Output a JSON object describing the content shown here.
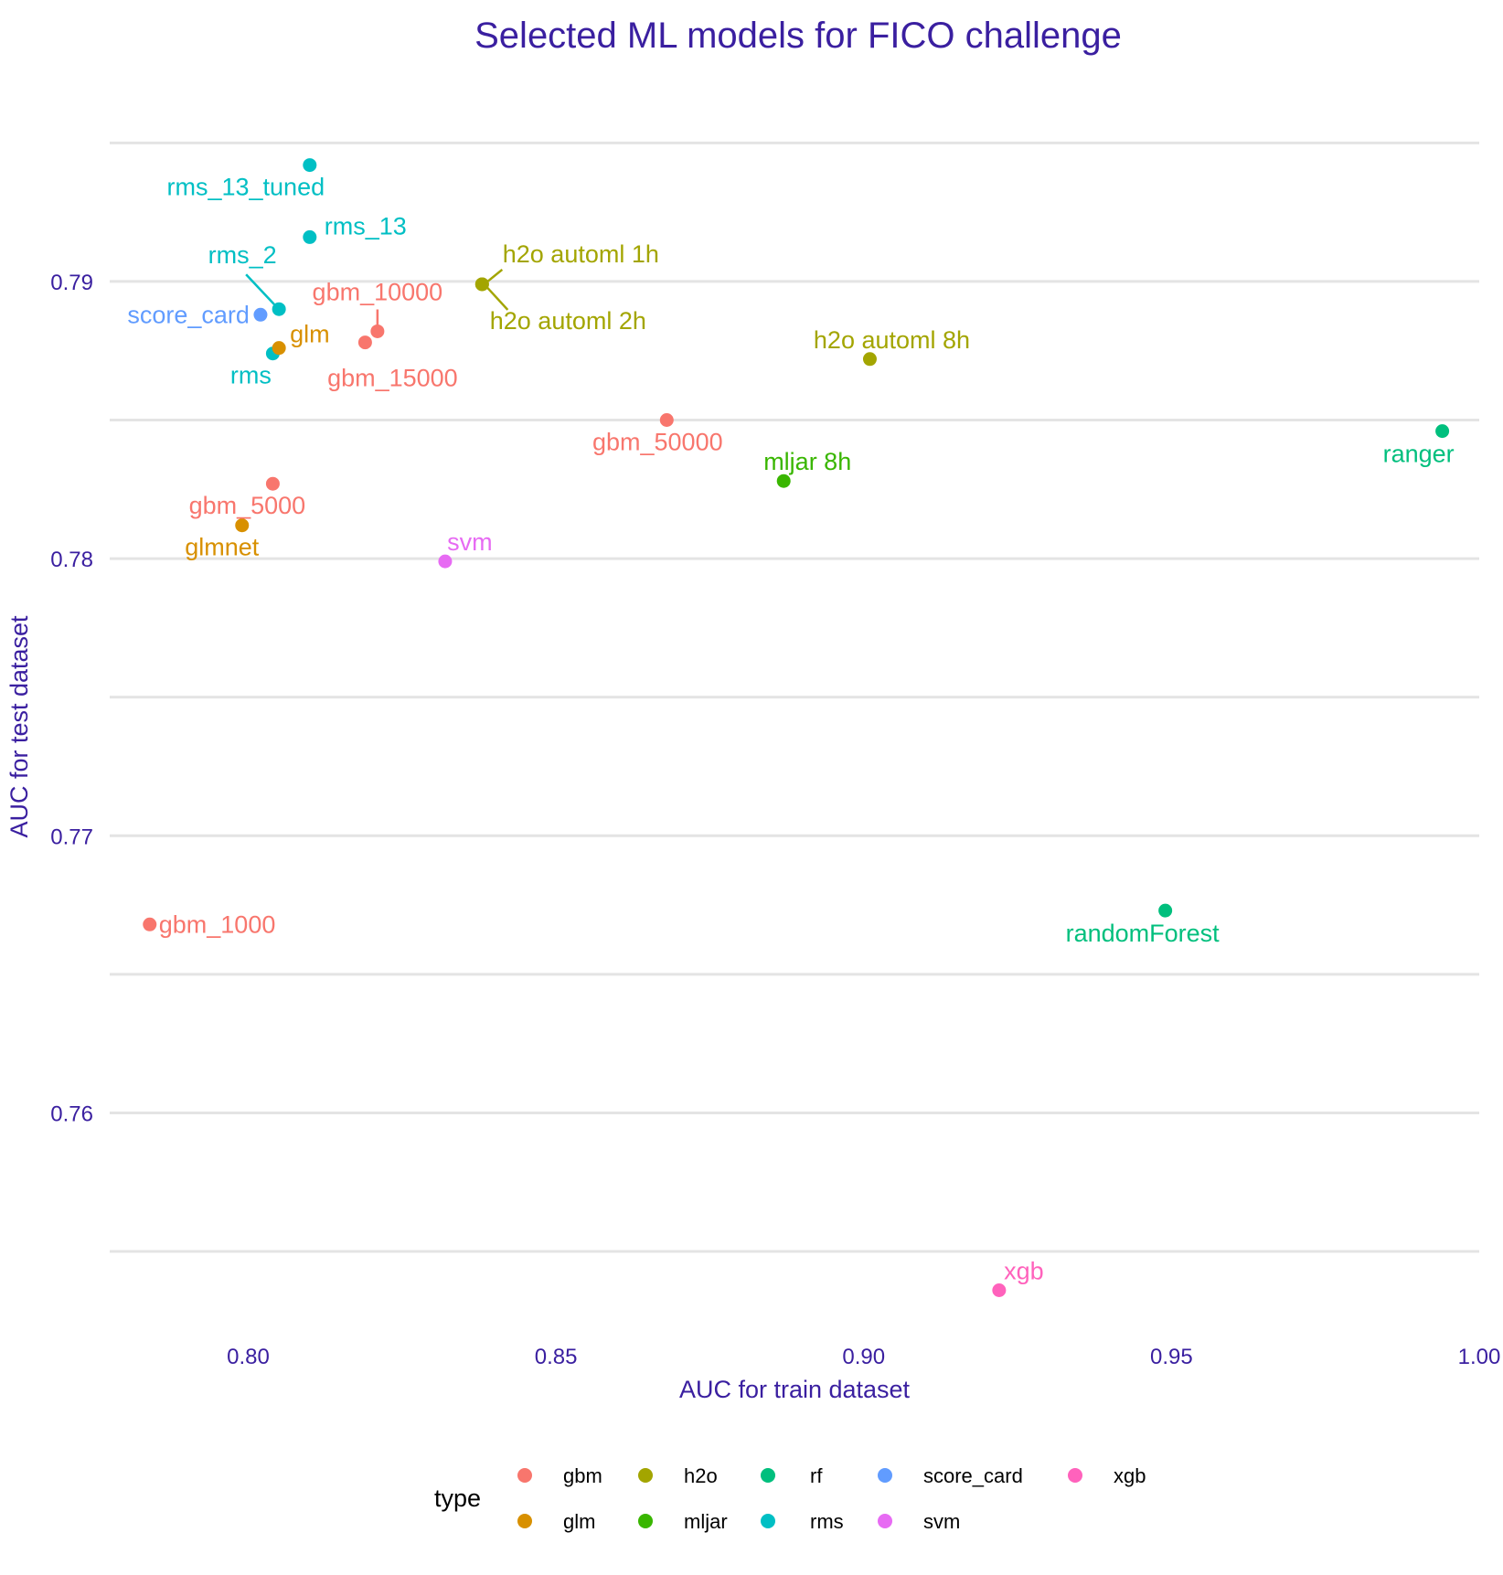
{
  "chart_data": {
    "type": "scatter",
    "title": "Selected ML models for FICO challenge",
    "xlabel": "AUC for train dataset",
    "ylabel": "AUC for test dataset",
    "xlim": [
      0.7775,
      1.0
    ],
    "ylim": [
      0.752,
      0.796
    ],
    "x_ticks": [
      0.8,
      0.85,
      0.9,
      0.95,
      1.0
    ],
    "x_tick_labels": [
      "0.80",
      "0.85",
      "0.90",
      "0.95",
      "1.00"
    ],
    "y_ticks": [
      0.76,
      0.77,
      0.78,
      0.79
    ],
    "y_tick_labels": [
      "0.76",
      "0.77",
      "0.78",
      "0.79"
    ],
    "y_minor_ticks": [
      0.755,
      0.765,
      0.775,
      0.785,
      0.795
    ],
    "grid": true,
    "legend_position": "bottom",
    "legend_title": "type",
    "colors": {
      "title": "#3a1fa0",
      "axis_text": "#3a1fa0",
      "grid": "#e4e4e4"
    },
    "legend": [
      {
        "label": "gbm",
        "color": "#F8766D"
      },
      {
        "label": "glm",
        "color": "#D89000"
      },
      {
        "label": "h2o",
        "color": "#A3A500"
      },
      {
        "label": "mljar",
        "color": "#39B600"
      },
      {
        "label": "rf",
        "color": "#00BF7D"
      },
      {
        "label": "rms",
        "color": "#00BFC4"
      },
      {
        "label": "score_card",
        "color": "#619CFF"
      },
      {
        "label": "svm",
        "color": "#E76BF3"
      },
      {
        "label": "xgb",
        "color": "#FF62BC"
      }
    ],
    "points": [
      {
        "label": "rms_13_tuned",
        "type": "rms",
        "x": 0.81,
        "y": 0.7942
      },
      {
        "label": "rms_13",
        "type": "rms",
        "x": 0.81,
        "y": 0.7916
      },
      {
        "label": "rms_2",
        "type": "rms",
        "x": 0.805,
        "y": 0.789
      },
      {
        "label": "rms",
        "type": "rms",
        "x": 0.804,
        "y": 0.7874
      },
      {
        "label": "score_card",
        "type": "score_card",
        "x": 0.802,
        "y": 0.7888
      },
      {
        "label": "glm",
        "type": "glm",
        "x": 0.805,
        "y": 0.7876
      },
      {
        "label": "gbm_10000",
        "type": "gbm",
        "x": 0.821,
        "y": 0.7882
      },
      {
        "label": "gbm_15000",
        "type": "gbm",
        "x": 0.819,
        "y": 0.7878
      },
      {
        "label": "h2o automl 1h",
        "type": "h2o",
        "x": 0.838,
        "y": 0.7899
      },
      {
        "label": "h2o automl 2h",
        "type": "h2o",
        "x": 0.838,
        "y": 0.7899
      },
      {
        "label": "h2o automl 8h",
        "type": "h2o",
        "x": 0.901,
        "y": 0.7872
      },
      {
        "label": "gbm_50000",
        "type": "gbm",
        "x": 0.868,
        "y": 0.785
      },
      {
        "label": "ranger",
        "type": "rf",
        "x": 0.994,
        "y": 0.7846
      },
      {
        "label": "mljar 8h",
        "type": "mljar",
        "x": 0.887,
        "y": 0.7828
      },
      {
        "label": "gbm_5000",
        "type": "gbm",
        "x": 0.804,
        "y": 0.7827
      },
      {
        "label": "glmnet",
        "type": "glm",
        "x": 0.799,
        "y": 0.7812
      },
      {
        "label": "svm",
        "type": "svm",
        "x": 0.832,
        "y": 0.7799
      },
      {
        "label": "gbm_1000",
        "type": "gbm",
        "x": 0.784,
        "y": 0.7668
      },
      {
        "label": "randomForest",
        "type": "rf",
        "x": 0.949,
        "y": 0.7673
      },
      {
        "label": "xgb",
        "type": "xgb",
        "x": 0.922,
        "y": 0.7536
      }
    ]
  }
}
